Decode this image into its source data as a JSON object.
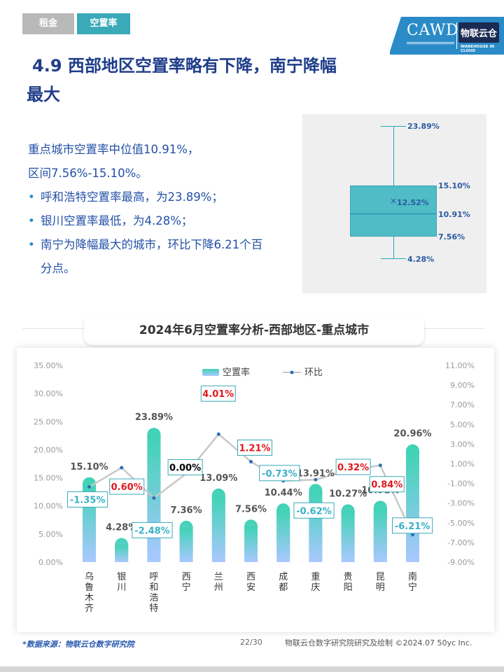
{
  "tabs": [
    {
      "label": "租金"
    },
    {
      "label": "空置率"
    }
  ],
  "logo": {
    "main": "CAWD",
    "brand": "物联云仓",
    "brand_sub": "WAREHOUSE IN CLOUD"
  },
  "title": {
    "line1": "4.9 西部地区空置率略有下降，南宁降幅",
    "line2": "最大"
  },
  "summary": {
    "line1": "重点城市空置率中位值10.91%，",
    "line2": "区间7.56%-15.10%。",
    "bullets": [
      "呼和浩特空置率最高，为23.89%；",
      "银川空置率最低，为4.28%；",
      "南宁为降幅最大的城市，环比下降6.21个百",
      "分点。"
    ]
  },
  "boxplot": {
    "max": "23.89%",
    "q3": "15.10%",
    "mean": "12.52%",
    "median": "10.91%",
    "q1": "7.56%",
    "min": "4.28%",
    "mean_marker": "×"
  },
  "chart_title": "2024年6月空置率分析-西部地区-重点城市",
  "chart_data": {
    "type": "bar",
    "categories": [
      "乌鲁木齐",
      "银川",
      "呼和浩特",
      "西宁",
      "兰州",
      "西安",
      "成都",
      "重庆",
      "贵阳",
      "昆明",
      "南宁"
    ],
    "series": [
      {
        "name": "空置率",
        "type": "bar",
        "axis": "left",
        "values": [
          15.1,
          4.28,
          23.89,
          7.36,
          13.09,
          7.56,
          10.44,
          13.91,
          10.27,
          10.91,
          20.96
        ],
        "labels": [
          "15.10%",
          "4.28%",
          "23.89%",
          "7.36%",
          "13.09%",
          "7.56%",
          "10.44%",
          "13.91%",
          "10.27%",
          "10.91%",
          "20.96%"
        ]
      },
      {
        "name": "环比",
        "type": "line",
        "axis": "right",
        "values": [
          -1.35,
          0.6,
          -2.48,
          0.0,
          4.01,
          1.21,
          -0.73,
          -0.62,
          0.32,
          0.84,
          -6.21
        ],
        "labels": [
          "-1.35%",
          "0.60%",
          "-2.48%",
          "0.00%",
          "4.01%",
          "1.21%",
          "-0.73%",
          "-0.62%",
          "0.32%",
          "0.84%",
          "-6.21%"
        ]
      }
    ],
    "y_left": {
      "min": 0,
      "max": 35,
      "step": 5,
      "ticks": [
        "0.00%",
        "5.00%",
        "10.00%",
        "15.00%",
        "20.00%",
        "25.00%",
        "30.00%",
        "35.00%"
      ]
    },
    "y_right": {
      "min": -9,
      "max": 11,
      "step": 2,
      "ticks": [
        "-9.00%",
        "-7.00%",
        "-5.00%",
        "-3.00%",
        "-1.00%",
        "1.00%",
        "3.00%",
        "5.00%",
        "7.00%",
        "9.00%",
        "11.00%"
      ]
    },
    "legend_position": "top-center",
    "grid": false,
    "colors": {
      "bar_top": "#3fd3b4",
      "bar_bottom": "#aac8ff",
      "line": "#c8c8c8",
      "marker": "#2a6fb8",
      "positive": "#e0191f",
      "negative": "#39b1c4",
      "zero": "#000000"
    }
  },
  "footer": {
    "source": "*数据来源：物联云仓数字研究院",
    "page": "22/30",
    "credit": "物联云仓数字研究院研究及绘制   ©2024.07 50yc Inc."
  }
}
